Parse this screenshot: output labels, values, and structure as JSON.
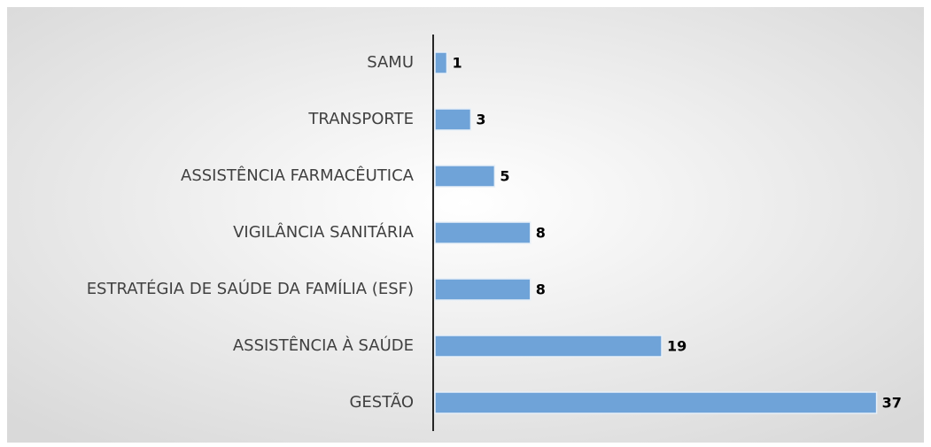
{
  "chart_data": {
    "type": "barh",
    "categories": [
      "SAMU",
      "TRANSPORTE",
      "ASSISTÊNCIA FARMACÊUTICA",
      "VIGILÂNCIA SANITÁRIA",
      "ESTRATÉGIA DE SAÚDE DA FAMÍLIA (ESF)",
      "ASSISTÊNCIA À SAÚDE",
      "GESTÃO"
    ],
    "values": [
      1,
      3,
      5,
      8,
      8,
      19,
      37
    ],
    "color": "#6fa3d8",
    "xlim": [
      0,
      40
    ]
  }
}
